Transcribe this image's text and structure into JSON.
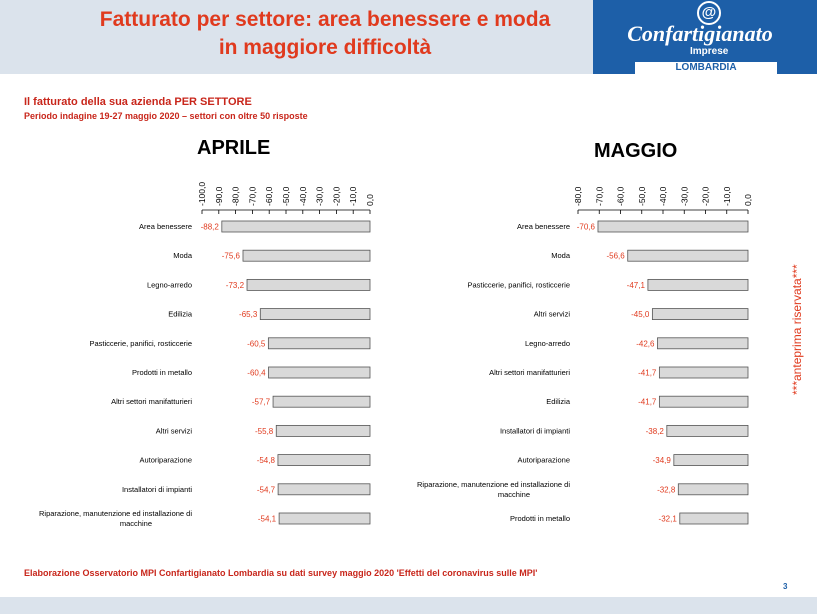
{
  "header": {
    "title_line1": "Fatturato per settore: area benessere e moda",
    "title_line2": "in maggiore difficoltà",
    "logo_name": "Confartigianato",
    "logo_imprese": "Imprese",
    "logo_region": "LOMBARDIA",
    "logo_symbol": "@"
  },
  "subtitle": {
    "line1": "Il fatturato della sua azienda PER SETTORE",
    "line2": "Periodo indagine 19-27 maggio 2020 – settori con oltre 50 risposte"
  },
  "side_note": "***anteprima riservata***",
  "footer": "Elaborazione Osservatorio MPI Confartigianato Lombardia su dati survey maggio 2020  'Effetti del coronavirus sulle MPI'",
  "page_number": "3",
  "colors": {
    "title_red": "#e03a1e",
    "bar_fill": "#d9d9d9",
    "value_red": "#e03a1e",
    "brand_blue": "#1d5fa8"
  },
  "chart_data": [
    {
      "type": "bar",
      "orientation": "horizontal",
      "title": "APRILE",
      "xlim": [
        -100,
        0
      ],
      "ticks": [
        "-100,0",
        "-90,0",
        "-80,0",
        "-70,0",
        "-60,0",
        "-50,0",
        "-40,0",
        "-30,0",
        "-20,0",
        "-10,0",
        "0,0"
      ],
      "categories": [
        "Area benessere",
        "Moda",
        "Legno-arredo",
        "Edilizia",
        "Pasticcerie, panifici, rosticcerie",
        "Prodotti in metallo",
        "Altri settori manifatturieri",
        "Altri servizi",
        "Autoriparazione",
        "Installatori di impianti",
        "Riparazione, manutenzione ed installazione di macchine"
      ],
      "values": [
        -88.2,
        -75.6,
        -73.2,
        -65.3,
        -60.5,
        -60.4,
        -57.7,
        -55.8,
        -54.8,
        -54.7,
        -54.1
      ],
      "value_labels": [
        "-88,2",
        "-75,6",
        "-73,2",
        "-65,3",
        "-60,5",
        "-60,4",
        "-57,7",
        "-55,8",
        "-54,8",
        "-54,7",
        "-54,1"
      ]
    },
    {
      "type": "bar",
      "orientation": "horizontal",
      "title": "MAGGIO",
      "xlim": [
        -80,
        0
      ],
      "ticks": [
        "-80,0",
        "-70,0",
        "-60,0",
        "-50,0",
        "-40,0",
        "-30,0",
        "-20,0",
        "-10,0",
        "0,0"
      ],
      "categories": [
        "Area benessere",
        "Moda",
        "Pasticcerie, panifici, rosticcerie",
        "Altri servizi",
        "Legno-arredo",
        "Altri settori manifatturieri",
        "Edilizia",
        "Installatori di impianti",
        "Autoriparazione",
        "Riparazione, manutenzione ed installazione di macchine",
        "Prodotti in metallo"
      ],
      "values": [
        -70.6,
        -56.6,
        -47.1,
        -45.0,
        -42.6,
        -41.7,
        -41.7,
        -38.2,
        -34.9,
        -32.8,
        -32.1
      ],
      "value_labels": [
        "-70,6",
        "-56,6",
        "-47,1",
        "-45,0",
        "-42,6",
        "-41,7",
        "-41,7",
        "-38,2",
        "-34,9",
        "-32,8",
        "-32,1"
      ]
    }
  ]
}
